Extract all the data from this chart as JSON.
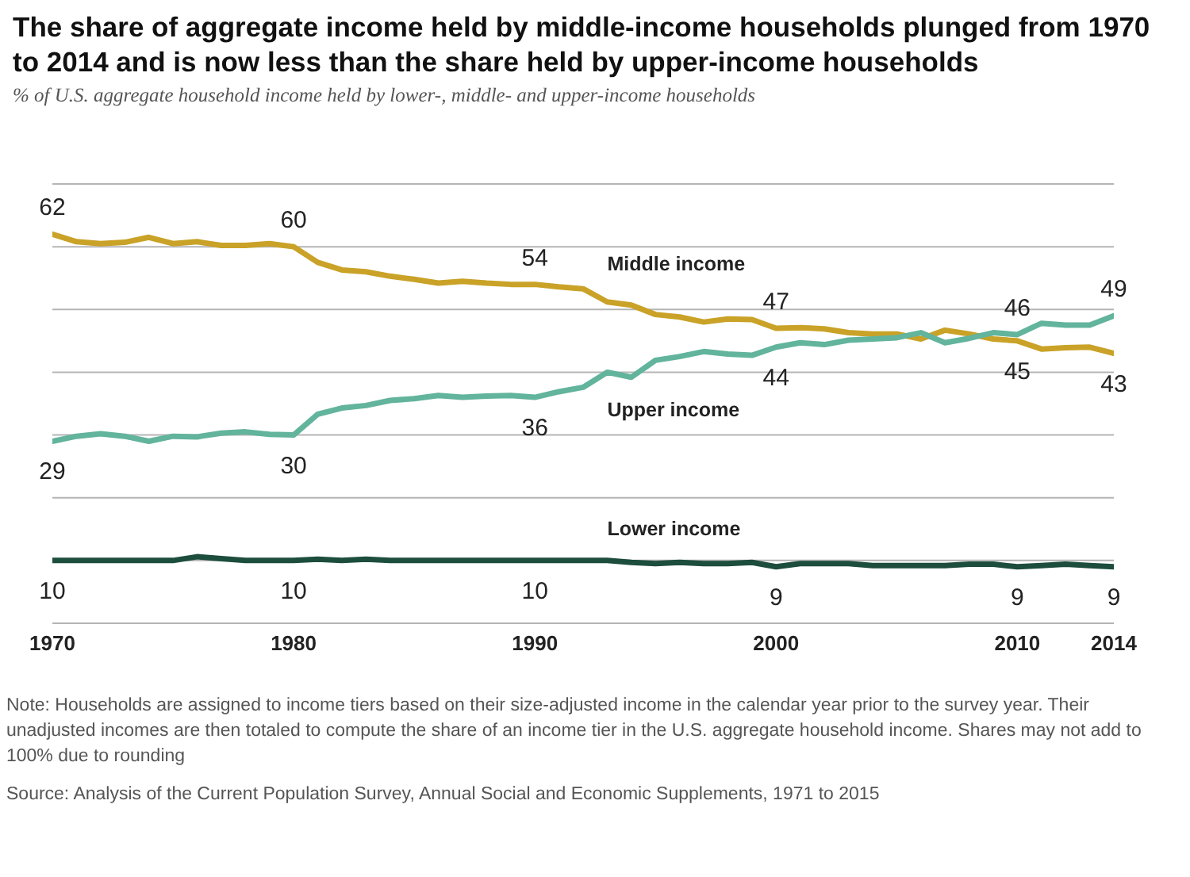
{
  "chart_data": {
    "type": "line",
    "title": "The share of aggregate income held by middle-income households plunged from 1970 to 2014 and is now less than the share held by upper-income households",
    "subtitle": "% of U.S. aggregate household income held by lower-, middle- and upper-income households",
    "x": [
      1970,
      1971,
      1972,
      1973,
      1974,
      1975,
      1976,
      1977,
      1978,
      1979,
      1980,
      1981,
      1982,
      1983,
      1984,
      1985,
      1986,
      1987,
      1988,
      1989,
      1990,
      1991,
      1992,
      1993,
      1994,
      1995,
      1996,
      1997,
      1998,
      1999,
      2000,
      2001,
      2002,
      2003,
      2004,
      2005,
      2006,
      2007,
      2008,
      2009,
      2010,
      2011,
      2012,
      2013,
      2014
    ],
    "series": [
      {
        "name": "Middle income",
        "color": "#c9a227",
        "values": [
          62,
          60.8,
          60.5,
          60.7,
          61.5,
          60.5,
          60.8,
          60.2,
          60.2,
          60.5,
          60,
          57.5,
          56.3,
          56,
          55.3,
          54.8,
          54.2,
          54.5,
          54.2,
          54,
          54,
          53.6,
          53.3,
          51.2,
          50.7,
          49.2,
          48.8,
          48,
          48.5,
          48.4,
          47,
          47.1,
          46.9,
          46.3,
          46.1,
          46.1,
          45.3,
          46.7,
          46.1,
          45.3,
          45,
          43.7,
          43.9,
          44,
          43
        ],
        "value_labels": [
          "62",
          null,
          null,
          null,
          null,
          null,
          null,
          null,
          null,
          null,
          "60",
          null,
          null,
          null,
          null,
          null,
          null,
          null,
          null,
          null,
          "54",
          null,
          null,
          null,
          null,
          null,
          null,
          null,
          null,
          null,
          "47",
          null,
          null,
          null,
          null,
          null,
          null,
          null,
          null,
          null,
          "45",
          null,
          null,
          null,
          "43"
        ]
      },
      {
        "name": "Upper income",
        "color": "#62b49c",
        "values": [
          29,
          29.8,
          30.2,
          29.8,
          29,
          29.8,
          29.7,
          30.3,
          30.5,
          30.1,
          30,
          33.3,
          34.3,
          34.7,
          35.5,
          35.8,
          36.3,
          36,
          36.2,
          36.3,
          36,
          36.9,
          37.6,
          40,
          39.2,
          41.9,
          42.5,
          43.3,
          42.9,
          42.7,
          44,
          44.7,
          44.4,
          45.1,
          45.3,
          45.5,
          46.3,
          44.7,
          45.4,
          46.3,
          46,
          47.8,
          47.5,
          47.5,
          49
        ],
        "value_labels": [
          "29",
          null,
          null,
          null,
          null,
          null,
          null,
          null,
          null,
          null,
          "30",
          null,
          null,
          null,
          null,
          null,
          null,
          null,
          null,
          null,
          "36",
          null,
          null,
          null,
          null,
          null,
          null,
          null,
          null,
          null,
          "44",
          null,
          null,
          null,
          null,
          null,
          null,
          null,
          null,
          null,
          "46",
          null,
          null,
          null,
          "49"
        ]
      },
      {
        "name": "Lower income",
        "color": "#1d4d3c",
        "values": [
          10,
          10,
          10,
          10,
          10,
          10,
          10.6,
          10.3,
          10,
          10,
          10,
          10.2,
          10,
          10.2,
          10,
          10,
          10,
          10,
          10,
          10,
          10,
          10,
          10,
          10,
          9.7,
          9.5,
          9.7,
          9.5,
          9.5,
          9.7,
          9,
          9.5,
          9.5,
          9.5,
          9.2,
          9.2,
          9.2,
          9.2,
          9.4,
          9.4,
          9,
          9.2,
          9.4,
          9.2,
          9
        ],
        "value_labels": [
          "10",
          null,
          null,
          null,
          null,
          null,
          null,
          null,
          null,
          null,
          "10",
          null,
          null,
          null,
          null,
          null,
          null,
          null,
          null,
          null,
          "10",
          null,
          null,
          null,
          null,
          null,
          null,
          null,
          null,
          null,
          "9",
          null,
          null,
          null,
          null,
          null,
          null,
          null,
          null,
          null,
          "9",
          null,
          null,
          null,
          "9"
        ]
      }
    ],
    "xlim": [
      1970,
      2014
    ],
    "xticks": [
      1970,
      1980,
      1990,
      2000,
      2010,
      2014
    ],
    "ylim": [
      0,
      70
    ],
    "yticks": [
      {
        "value": 0,
        "label": null
      },
      {
        "value": 10,
        "label": null
      },
      {
        "value": 20,
        "label": null
      },
      {
        "value": 30,
        "label": null
      },
      {
        "value": 40,
        "label": null
      },
      {
        "value": 50,
        "label": null
      },
      {
        "value": 60,
        "label": null
      },
      {
        "value": 70,
        "label": null
      }
    ],
    "tick_labels": "x",
    "grid": "y",
    "legend": false,
    "marker": "none",
    "line_style": "solid",
    "annotations": [
      "Note: Households are assigned to income tiers based on their size-adjusted income in the calendar year prior to the survey year. Their unadjusted incomes are then totaled to compute the share of an income tier in the U.S. aggregate household income. Shares may not add to 100% due to rounding",
      "Source: Analysis of the Current Population Survey, Annual Social and Economic Supplements, 1971 to 2015"
    ]
  }
}
